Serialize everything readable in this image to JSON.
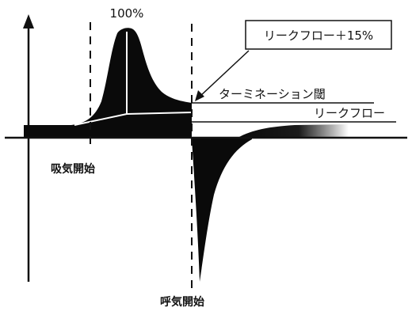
{
  "labels": {
    "peak": "100%",
    "leak_flow_plus": "リークフロー＋15%",
    "termination_threshold": "ターミネーション閾",
    "leak_flow": "リークフロー",
    "inspiration_start": "吸気開始",
    "expiration_start": "呼気開始"
  },
  "colors": {
    "fill": "#0a0a0a",
    "line": "#111111",
    "inner_line": "#ffffff",
    "background": "#ffffff"
  }
}
